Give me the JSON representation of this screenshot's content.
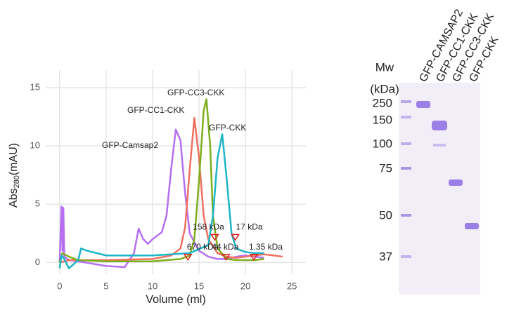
{
  "chart_data": {
    "type": "line",
    "x_label": "Volume (ml)",
    "y_label": {
      "main": "Abs",
      "sub": "280",
      "unit": "(mAU)"
    },
    "xlim": [
      -1.5,
      26.5
    ],
    "xticks": [
      0,
      5,
      10,
      15,
      20,
      25
    ],
    "ylim": [
      -1,
      16.5
    ],
    "yticks": [
      0,
      5,
      10,
      15
    ],
    "grid": true,
    "series": [
      {
        "name": "GFP-Camsap2",
        "color": "#b56ff0",
        "x": [
          0,
          0.2,
          0.3,
          0.4,
          0.5,
          1,
          2,
          5,
          7,
          8,
          8.5,
          9,
          9.5,
          10,
          11,
          11.5,
          12,
          12.5,
          13,
          13.5,
          14,
          15,
          16,
          17,
          18,
          19,
          20,
          21,
          22
        ],
        "values": [
          0,
          4.8,
          1,
          4.7,
          0.5,
          0.2,
          0.1,
          -0.3,
          -0.4,
          0.8,
          2.9,
          2.0,
          1.6,
          2.0,
          2.6,
          4,
          8,
          11.4,
          10.5,
          6,
          2.5,
          1,
          0.5,
          0.3,
          0.3,
          0.5,
          0.6,
          0.5,
          0.4
        ]
      },
      {
        "name": "GFP-CC1-CKK",
        "color": "#f2705f",
        "x": [
          0,
          1,
          2,
          5,
          10,
          12,
          13,
          13.5,
          14,
          14.5,
          15,
          15.5,
          16,
          17,
          18,
          19,
          20,
          21,
          22,
          23,
          24
        ],
        "values": [
          0,
          0.2,
          0.2,
          0.2,
          0.3,
          0.6,
          1.2,
          3,
          8,
          12.4,
          9,
          4,
          2,
          0.8,
          0.5,
          0.4,
          0.5,
          0.6,
          0.7,
          0.6,
          0.5
        ]
      },
      {
        "name": "GFP-CC3-CKK",
        "color": "#7fae1c",
        "x": [
          0,
          0.3,
          1,
          2,
          5,
          10,
          13,
          14,
          14.5,
          15,
          15.5,
          15.8,
          16.2,
          16.5,
          17,
          18,
          19,
          20,
          21,
          22
        ],
        "values": [
          0,
          0.8,
          0.5,
          0.2,
          0.1,
          0.1,
          0.3,
          0.6,
          2,
          7,
          13,
          14,
          10,
          4,
          1.2,
          0.3,
          0.2,
          0.2,
          0.2,
          0.3
        ]
      },
      {
        "name": "GFP-CKK",
        "color": "#1db6c6",
        "x": [
          0,
          0.2,
          0.5,
          1,
          2,
          2.3,
          3,
          5,
          10,
          14,
          16,
          16.5,
          17,
          17.5,
          18,
          18.5,
          19,
          20,
          21,
          22
        ],
        "values": [
          -0.5,
          0.6,
          0.3,
          -0.5,
          0.2,
          1.2,
          1.0,
          0.6,
          0.6,
          0.8,
          1.5,
          4,
          9,
          11,
          7,
          2.5,
          1.2,
          0.9,
          0.8,
          0.8
        ]
      }
    ],
    "standards": [
      {
        "name": "670 kDa",
        "x": 13.8,
        "y": 0.4
      },
      {
        "name": "158 kDa",
        "x": 16.7,
        "y": 2.1
      },
      {
        "name": "44 kDa",
        "x": 17.9,
        "y": 0.4
      },
      {
        "name": "17 kDa",
        "x": 18.9,
        "y": 2.1
      },
      {
        "name": "1.35 kDa",
        "x": 20.9,
        "y": 0.4
      }
    ]
  },
  "gel": {
    "mw_title": "Mw",
    "mw_unit": "(kDa)",
    "markers": [
      "250",
      "150",
      "100",
      "75",
      "50",
      "37"
    ],
    "lanes": [
      "GFP-CAMSAP2",
      "GFP-CC1-CKK",
      "GFP-CC3-CKK",
      "GFP-CKK"
    ]
  }
}
